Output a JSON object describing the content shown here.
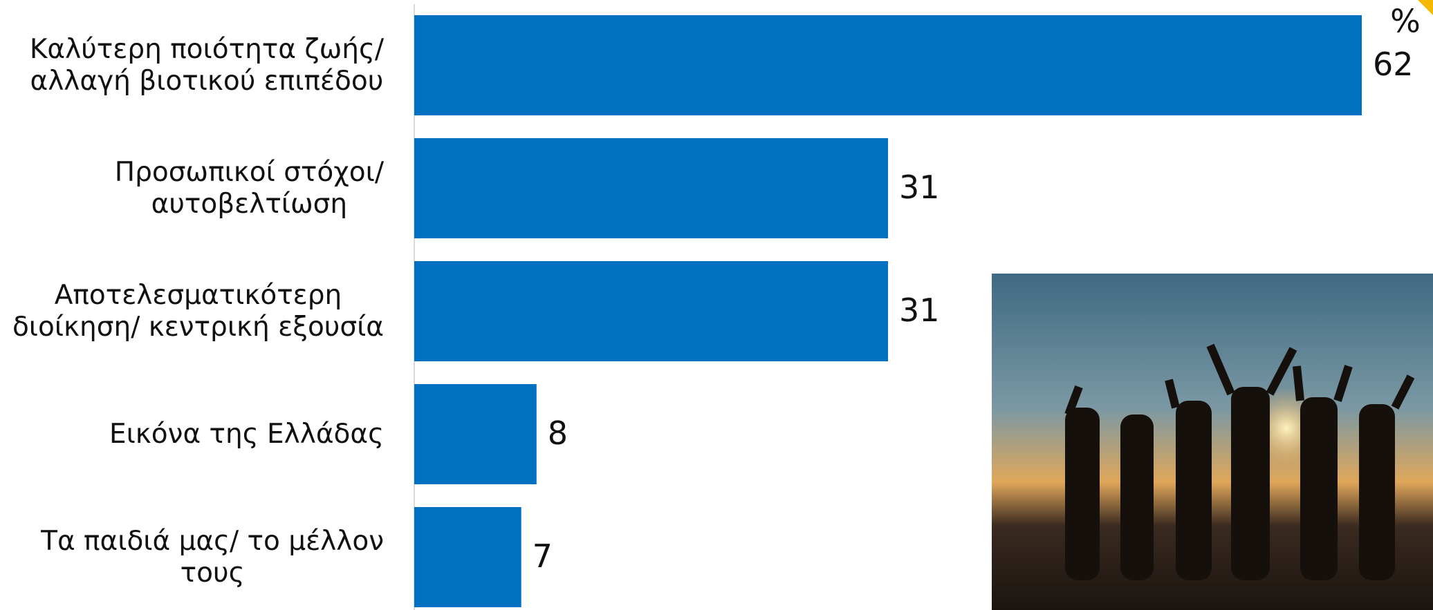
{
  "chart_data": {
    "type": "bar",
    "orientation": "horizontal",
    "unit_label": "%",
    "categories": [
      "Καλύτερη ποιότητα ζωής/\nαλλαγή βιοτικού επιπέδου",
      "Προσωπικοί στόχοι/\nαυτοβελτίωση",
      "Αποτελεσματικότερη\nδιοίκηση/ κεντρική εξουσία",
      "Εικόνα της Ελλάδας",
      "Τα παιδιά μας/ το μέλλον\nτους"
    ],
    "values": [
      62,
      31,
      31,
      8,
      7
    ],
    "color": "#0070c0",
    "xlim": [
      0,
      62
    ]
  }
}
